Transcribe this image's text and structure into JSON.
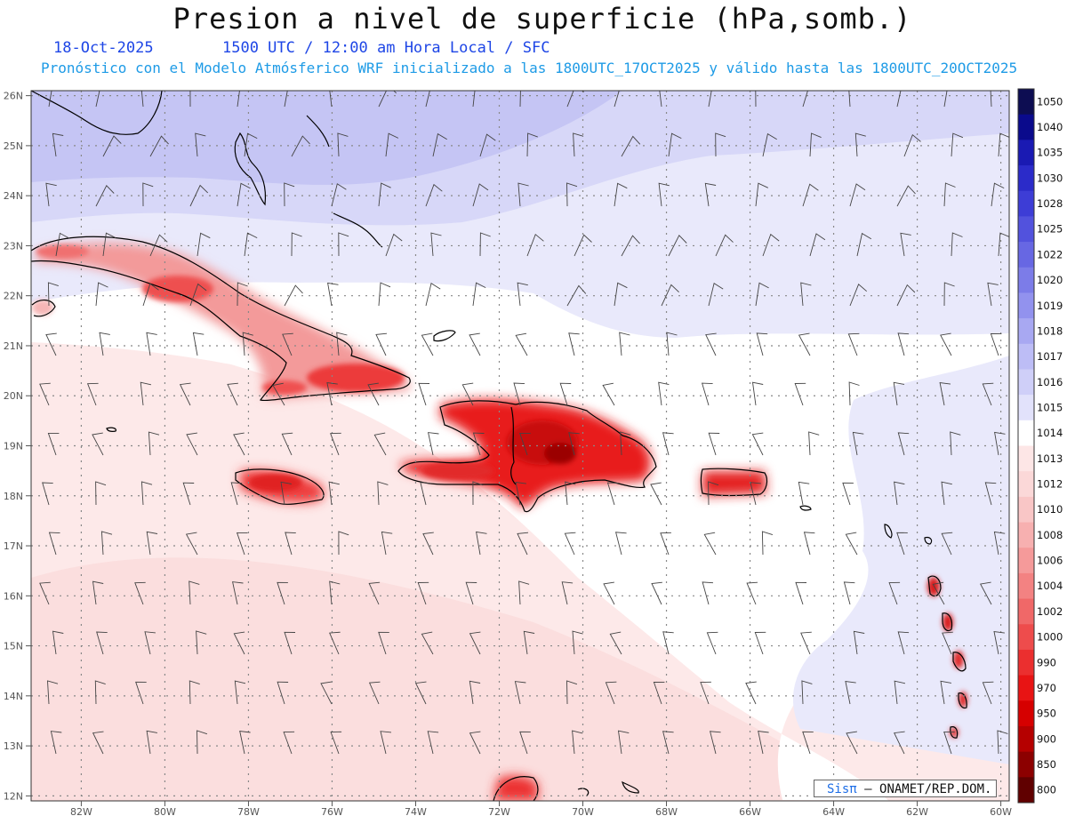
{
  "header": {
    "title": "Presion a nivel de superficie (hPa,somb.)",
    "date": "18-Oct-2025",
    "time_info": "1500 UTC / 12:00 am Hora Local / SFC",
    "forecast_info": "Pronóstico con el Modelo Atmósferico WRF inicializado a las 1800UTC_17OCT2025 y válido hasta las  1800UTC_20OCT2025"
  },
  "map": {
    "lat_labels": [
      "12N",
      "13N",
      "14N",
      "15N",
      "16N",
      "17N",
      "18N",
      "19N",
      "20N",
      "21N",
      "22N",
      "23N",
      "24N",
      "25N",
      "26N"
    ],
    "lon_labels": [
      "82W",
      "80W",
      "78W",
      "76W",
      "74W",
      "72W",
      "70W",
      "68W",
      "66W",
      "64W",
      "62W",
      "60W"
    ],
    "lon_range": [
      -83.2,
      -59.8
    ],
    "lat_range": [
      11.9,
      26.1
    ],
    "islands": [
      "Cuba",
      "Jamaica",
      "Hispaniola",
      "Puerto Rico",
      "Bahamas",
      "Lesser Antilles"
    ]
  },
  "colorbar": {
    "levels": [
      "1050",
      "1040",
      "1035",
      "1030",
      "1028",
      "1025",
      "1022",
      "1020",
      "1019",
      "1018",
      "1017",
      "1016",
      "1015",
      "1014",
      "1013",
      "1012",
      "1010",
      "1008",
      "1006",
      "1004",
      "1002",
      "1000",
      "990",
      "970",
      "950",
      "900",
      "850",
      "800"
    ],
    "colors": [
      "#0d0d52",
      "#0a0a8c",
      "#1a1ab3",
      "#2b2bc9",
      "#3d3dd6",
      "#5252dd",
      "#6767e3",
      "#7c7ce8",
      "#9292ee",
      "#a8a8f2",
      "#bdbdf6",
      "#cfcff8",
      "#e2e2fb",
      "#ffffff",
      "#fde6e6",
      "#fbd8d8",
      "#f9c6c6",
      "#f7b0b0",
      "#f59a9a",
      "#f38282",
      "#f06868",
      "#ee4c4c",
      "#eb2f2f",
      "#e81414",
      "#d60000",
      "#b50000",
      "#8c0000",
      "#600000"
    ]
  },
  "credit": {
    "sis": "Sisπ",
    "org": "– ONAMET/REP.DOM."
  }
}
